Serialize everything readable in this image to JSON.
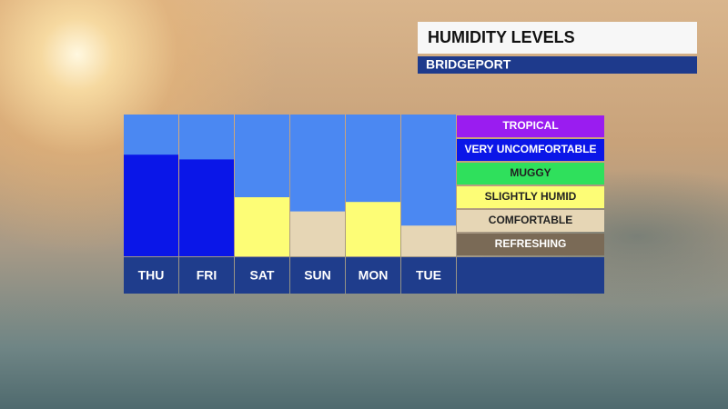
{
  "chart_data": {
    "type": "bar",
    "title": "HUMIDITY LEVELS",
    "subtitle": "BRIDGEPORT",
    "categories": [
      "THU",
      "FRI",
      "SAT",
      "SUN",
      "MON",
      "TUE"
    ],
    "values": [
      4.3,
      4.1,
      2.5,
      1.9,
      2.3,
      1.3
    ],
    "ylim": [
      0,
      6
    ],
    "levels": [
      {
        "name": "TROPICAL",
        "color": "#9a1cf0"
      },
      {
        "name": "VERY UNCOMFORTABLE",
        "color": "#0a16e8"
      },
      {
        "name": "MUGGY",
        "color": "#2fe05c"
      },
      {
        "name": "SLIGHTLY HUMID",
        "color": "#fdfd76"
      },
      {
        "name": "COMFORTABLE",
        "color": "#e6d6b5"
      },
      {
        "name": "REFRESHING",
        "color": "#7a6a56"
      }
    ]
  }
}
